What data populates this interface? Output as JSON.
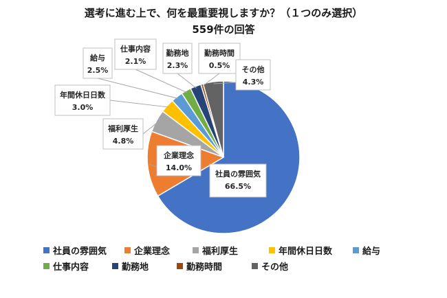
{
  "title": "選考に進む上で、何を最重要視しますか？（１つのみ選択）",
  "subtitle": "559件の回答",
  "chart_data": {
    "type": "pie",
    "categories": [
      "社員の雰囲気",
      "企業理念",
      "福利厚生",
      "年間休日日数",
      "給与",
      "仕事内容",
      "勤務地",
      "勤務時間",
      "その他"
    ],
    "values": [
      66.5,
      14.0,
      4.8,
      3.0,
      2.5,
      2.1,
      2.3,
      0.5,
      4.3
    ],
    "value_labels": [
      "66.5%",
      "14.0%",
      "4.8%",
      "3.0%",
      "2.5%",
      "2.1%",
      "2.3%",
      "0.5%",
      "4.3%"
    ],
    "colors": [
      "#4472C4",
      "#ED7D31",
      "#A5A5A5",
      "#FFC000",
      "#5B9BD5",
      "#70AD47",
      "#264478",
      "#9E480E",
      "#636363"
    ],
    "legend_position": "bottom"
  }
}
